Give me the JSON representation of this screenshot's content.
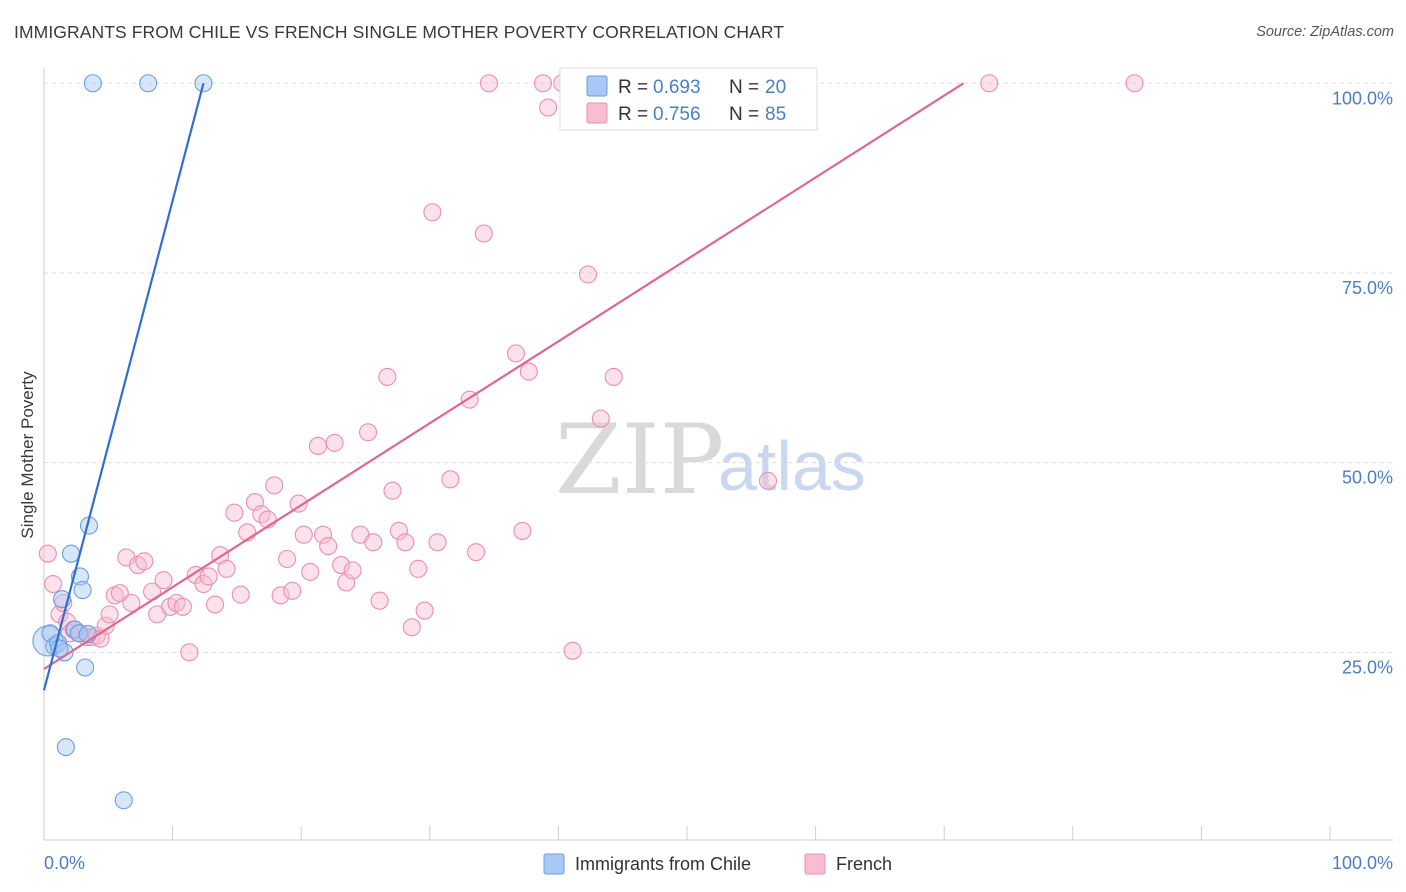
{
  "header": {
    "title": "IMMIGRANTS FROM CHILE VS FRENCH SINGLE MOTHER POVERTY CORRELATION CHART",
    "source": "Source: ZipAtlas.com"
  },
  "watermark": {
    "zip": "ZIP",
    "atlas": "atlas"
  },
  "colors": {
    "chile_fill": "#a9c8f3",
    "chile_stroke": "#6a9ee3",
    "chile_line": "#2f6fcf",
    "french_fill": "#f7bdd0",
    "french_stroke": "#ec8fae",
    "french_line": "#e0668f",
    "tick_label": "#4a7fc6",
    "grid": "#dddddd"
  },
  "chart_data": {
    "type": "scatter",
    "title": "IMMIGRANTS FROM CHILE VS FRENCH SINGLE MOTHER POVERTY CORRELATION CHART",
    "xlabel": "",
    "ylabel": "Single Mother Poverty",
    "xlim": [
      0,
      100
    ],
    "ylim": [
      0,
      103
    ],
    "x_tick_labels": [
      "0.0%",
      "100.0%"
    ],
    "y_ticks": [
      25,
      50,
      75,
      100
    ],
    "y_tick_labels": [
      "25.0%",
      "50.0%",
      "75.0%",
      "100.0%"
    ],
    "grid": true,
    "legend_position": "top-center",
    "legend": [
      {
        "r_label": "R = ",
        "r_value": "0.693",
        "n_label": "N = ",
        "n_value": "20"
      },
      {
        "r_label": "R = ",
        "r_value": "0.756",
        "n_label": "N = ",
        "n_value": "85"
      }
    ],
    "series": [
      {
        "name": "Immigrants from Chile",
        "trend": {
          "x": [
            0,
            12.4
          ],
          "y": [
            20,
            100
          ]
        },
        "points": [
          {
            "x": 0.3,
            "y": 26.5,
            "big": true
          },
          {
            "x": 0.5,
            "y": 27.5
          },
          {
            "x": 0.8,
            "y": 25.8
          },
          {
            "x": 1.1,
            "y": 26.2
          },
          {
            "x": 1.4,
            "y": 32
          },
          {
            "x": 1.6,
            "y": 25
          },
          {
            "x": 1.7,
            "y": 12.5
          },
          {
            "x": 2.1,
            "y": 38
          },
          {
            "x": 2.4,
            "y": 28
          },
          {
            "x": 2.7,
            "y": 27.5
          },
          {
            "x": 2.8,
            "y": 35
          },
          {
            "x": 3.0,
            "y": 33.2
          },
          {
            "x": 3.2,
            "y": 23
          },
          {
            "x": 3.4,
            "y": 27.4
          },
          {
            "x": 3.5,
            "y": 41.7
          },
          {
            "x": 3.8,
            "y": 100
          },
          {
            "x": 6.2,
            "y": 5.5
          },
          {
            "x": 8.1,
            "y": 100
          },
          {
            "x": 12.4,
            "y": 100
          },
          {
            "x": 1.2,
            "y": 25.5
          }
        ]
      },
      {
        "name": "French",
        "trend": {
          "x": [
            0,
            71.5
          ],
          "y": [
            22.8,
            100
          ]
        },
        "points": [
          {
            "x": 0.3,
            "y": 38
          },
          {
            "x": 0.7,
            "y": 34
          },
          {
            "x": 1.2,
            "y": 30
          },
          {
            "x": 1.5,
            "y": 31.5
          },
          {
            "x": 1.8,
            "y": 29
          },
          {
            "x": 2.0,
            "y": 27.5
          },
          {
            "x": 2.3,
            "y": 28
          },
          {
            "x": 2.8,
            "y": 27.5
          },
          {
            "x": 3.3,
            "y": 27
          },
          {
            "x": 3.7,
            "y": 27
          },
          {
            "x": 4.1,
            "y": 27.2
          },
          {
            "x": 4.4,
            "y": 26.8
          },
          {
            "x": 4.8,
            "y": 28.5
          },
          {
            "x": 5.1,
            "y": 30
          },
          {
            "x": 5.5,
            "y": 32.5
          },
          {
            "x": 5.9,
            "y": 32.8
          },
          {
            "x": 6.4,
            "y": 37.5
          },
          {
            "x": 6.8,
            "y": 31.5
          },
          {
            "x": 7.3,
            "y": 36.5
          },
          {
            "x": 7.8,
            "y": 37
          },
          {
            "x": 8.4,
            "y": 33
          },
          {
            "x": 8.8,
            "y": 30
          },
          {
            "x": 9.3,
            "y": 34.5
          },
          {
            "x": 9.8,
            "y": 31
          },
          {
            "x": 10.3,
            "y": 31.5
          },
          {
            "x": 10.8,
            "y": 31
          },
          {
            "x": 11.3,
            "y": 25
          },
          {
            "x": 11.8,
            "y": 35.2
          },
          {
            "x": 12.4,
            "y": 34
          },
          {
            "x": 12.8,
            "y": 35
          },
          {
            "x": 13.3,
            "y": 31.3
          },
          {
            "x": 13.7,
            "y": 37.8
          },
          {
            "x": 14.2,
            "y": 36
          },
          {
            "x": 14.8,
            "y": 43.4
          },
          {
            "x": 15.3,
            "y": 32.6
          },
          {
            "x": 15.8,
            "y": 40.8
          },
          {
            "x": 16.4,
            "y": 44.8
          },
          {
            "x": 16.9,
            "y": 43.2
          },
          {
            "x": 17.4,
            "y": 42.5
          },
          {
            "x": 17.9,
            "y": 47
          },
          {
            "x": 18.4,
            "y": 32.5
          },
          {
            "x": 18.9,
            "y": 37.3
          },
          {
            "x": 19.3,
            "y": 33.1
          },
          {
            "x": 19.8,
            "y": 44.6
          },
          {
            "x": 20.2,
            "y": 40.5
          },
          {
            "x": 20.7,
            "y": 35.6
          },
          {
            "x": 21.3,
            "y": 52.2
          },
          {
            "x": 21.7,
            "y": 40.5
          },
          {
            "x": 22.1,
            "y": 39
          },
          {
            "x": 22.6,
            "y": 52.6
          },
          {
            "x": 23.1,
            "y": 36.5
          },
          {
            "x": 23.5,
            "y": 34.2
          },
          {
            "x": 24.0,
            "y": 35.8
          },
          {
            "x": 24.6,
            "y": 40.5
          },
          {
            "x": 25.2,
            "y": 54
          },
          {
            "x": 25.6,
            "y": 39.5
          },
          {
            "x": 26.1,
            "y": 31.8
          },
          {
            "x": 26.7,
            "y": 61.3
          },
          {
            "x": 27.1,
            "y": 46.3
          },
          {
            "x": 27.6,
            "y": 41
          },
          {
            "x": 28.1,
            "y": 39.5
          },
          {
            "x": 28.6,
            "y": 28.3
          },
          {
            "x": 29.1,
            "y": 36
          },
          {
            "x": 29.6,
            "y": 30.5
          },
          {
            "x": 30.2,
            "y": 83
          },
          {
            "x": 30.6,
            "y": 39.5
          },
          {
            "x": 31.6,
            "y": 47.8
          },
          {
            "x": 33.1,
            "y": 58.3
          },
          {
            "x": 33.6,
            "y": 38.2
          },
          {
            "x": 34.2,
            "y": 80.2
          },
          {
            "x": 34.6,
            "y": 100
          },
          {
            "x": 36.7,
            "y": 64.4
          },
          {
            "x": 37.2,
            "y": 41
          },
          {
            "x": 37.7,
            "y": 62
          },
          {
            "x": 38.8,
            "y": 100
          },
          {
            "x": 39.2,
            "y": 96.8
          },
          {
            "x": 40.3,
            "y": 100
          },
          {
            "x": 41.1,
            "y": 25.2
          },
          {
            "x": 42.3,
            "y": 74.8
          },
          {
            "x": 43.3,
            "y": 55.8
          },
          {
            "x": 44.3,
            "y": 61.3
          },
          {
            "x": 45.7,
            "y": 100
          },
          {
            "x": 56.3,
            "y": 47.6
          },
          {
            "x": 73.5,
            "y": 100
          },
          {
            "x": 84.8,
            "y": 100
          }
        ]
      }
    ]
  }
}
